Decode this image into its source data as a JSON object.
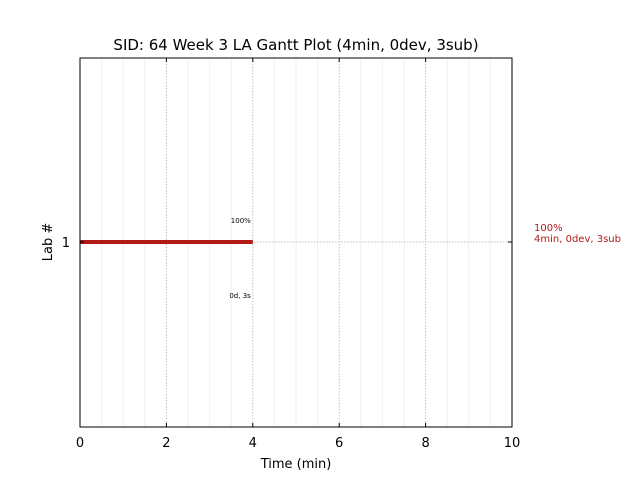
{
  "chart_data": {
    "type": "gantt",
    "title": "SID: 64 Week 3 LA Gantt Plot (4min, 0dev, 3sub)",
    "xlabel": "Time (min)",
    "ylabel": "Lab #",
    "xlim": [
      0,
      10
    ],
    "xticks": [
      "0",
      "2",
      "4",
      "6",
      "8",
      "10"
    ],
    "yticks": [
      "1"
    ],
    "grid": true,
    "bar_color": "#b21a1a",
    "bars": [
      {
        "lab": 1,
        "start": 0,
        "end": 4,
        "label_above": "100%",
        "label_below": "0d, 3s",
        "side_percent": "100%",
        "side_detail": "4min, 0dev, 3sub"
      }
    ]
  }
}
